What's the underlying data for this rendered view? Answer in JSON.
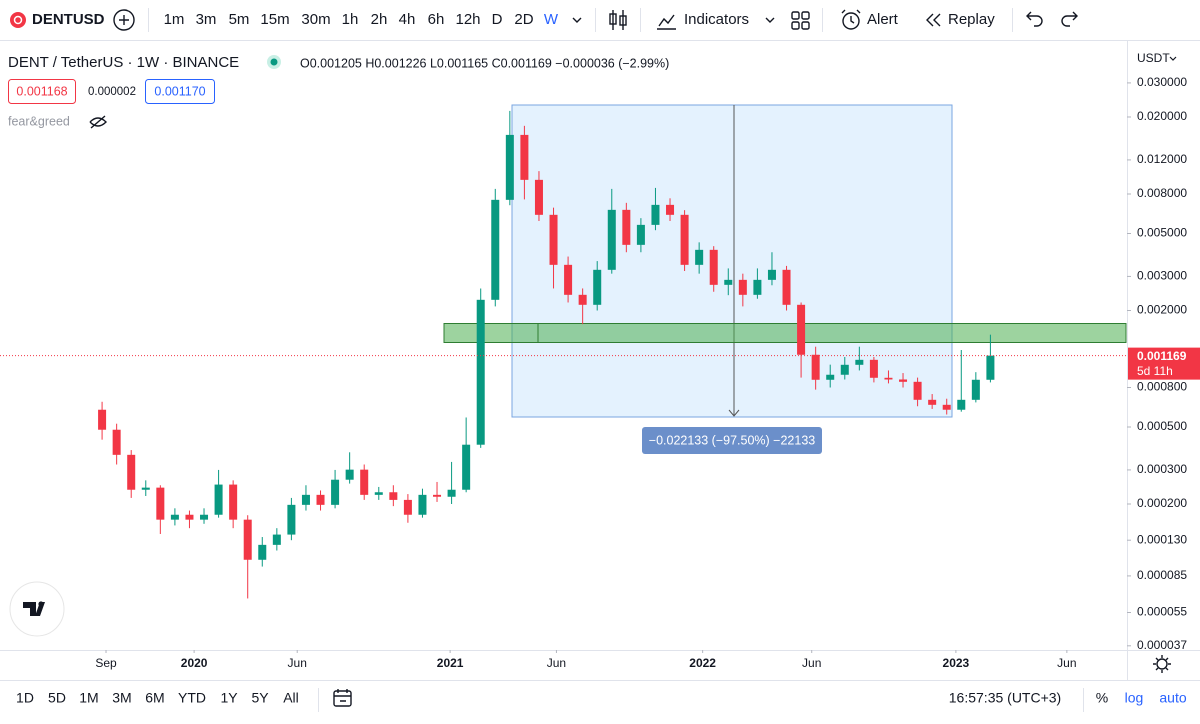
{
  "ui": {
    "symbol": "DENTUSD",
    "intervals": [
      "1m",
      "3m",
      "5m",
      "15m",
      "30m",
      "1h",
      "2h",
      "4h",
      "6h",
      "12h",
      "D",
      "2D",
      "W"
    ],
    "indicators": "Indicators",
    "alert": "Alert",
    "replay": "Replay",
    "legend_title": "DENT / TetherUS · 1W · BINANCE",
    "ohlc_line": "O0.001205 H0.001226 L0.001165 C0.001169 −0.000036 (−2.99%)",
    "bid": "0.001168",
    "spread": "0.000002",
    "ask": "0.001170",
    "indicator_name": "fear&greed",
    "currency": "USDT",
    "price_tag": "0.001169",
    "countdown": "5d 11h",
    "measure_label": "−0.022133 (−97.50%) −22133",
    "ranges": [
      "1D",
      "5D",
      "1M",
      "3M",
      "6M",
      "YTD",
      "1Y",
      "5Y",
      "All"
    ],
    "clock": "16:57:35 (UTC+3)",
    "percent": "%",
    "log": "log",
    "auto": "auto"
  },
  "chart_data": {
    "type": "candlestick",
    "log_scale": true,
    "grid": false,
    "up_color": "#089981",
    "down_color": "#f23645",
    "xlim": [
      -7.01,
      70.38
    ],
    "xticks": [
      {
        "value": 0.27,
        "label": "Sep"
      },
      {
        "value": 6.32,
        "label": "2020"
      },
      {
        "value": 13.4,
        "label": "Jun"
      },
      {
        "value": 23.9,
        "label": "2021"
      },
      {
        "value": 31.2,
        "label": "Jun"
      },
      {
        "value": 41.24,
        "label": "2022"
      },
      {
        "value": 48.73,
        "label": "Jun"
      },
      {
        "value": 58.63,
        "label": "2023"
      },
      {
        "value": 66.25,
        "label": "Jun"
      }
    ],
    "ylim": [
      3.52e-05,
      0.0471
    ],
    "yticks": [
      {
        "value": 0.03,
        "label": "0.030000"
      },
      {
        "value": 0.02,
        "label": "0.020000"
      },
      {
        "value": 0.012,
        "label": "0.012000"
      },
      {
        "value": 0.008,
        "label": "0.008000"
      },
      {
        "value": 0.005,
        "label": "0.005000"
      },
      {
        "value": 0.003,
        "label": "0.003000"
      },
      {
        "value": 0.002,
        "label": "0.002000"
      },
      {
        "value": 0.0008,
        "label": "0.000800"
      },
      {
        "value": 0.0005,
        "label": "0.000500"
      },
      {
        "value": 0.0003,
        "label": "0.000300"
      },
      {
        "value": 0.0002,
        "label": "0.000200"
      },
      {
        "value": 0.00013,
        "label": "0.000130"
      },
      {
        "value": 8.5e-05,
        "label": "0.000085"
      },
      {
        "value": 5.5e-05,
        "label": "0.000055"
      },
      {
        "value": 3.7e-05,
        "label": "0.000037"
      }
    ],
    "open": [
      0.000614,
      0.000484,
      0.000359,
      0.000237,
      0.000243,
      0.000166,
      0.000176,
      0.000166,
      0.000176,
      0.000252,
      0.000166,
      0.000103,
      0.000123,
      0.000139,
      0.000198,
      0.000223,
      0.000198,
      0.000267,
      0.000301,
      0.000223,
      0.00023,
      0.00021,
      0.000176,
      0.000223,
      0.000218,
      0.000237,
      0.000405,
      0.002271,
      0.007462,
      0.01616,
      0.009465,
      0.006243,
      0.003443,
      0.00241,
      0.00214,
      0.003245,
      0.006624,
      0.004368,
      0.00554,
      0.007029,
      0.006243,
      0.003443,
      0.004116,
      0.002714,
      0.00288,
      0.00241,
      0.00288,
      0.003245,
      0.00214,
      0.001181,
      0.000877,
      0.000931,
      0.001048,
      0.001112,
      0.000898,
      0.00088,
      0.000856,
      0.000691,
      0.000651,
      0.000614,
      0.000691,
      0.000877
    ],
    "high": [
      0.000675,
      0.00052,
      0.00038,
      0.000265,
      0.00025,
      0.00019,
      0.000185,
      0.00019,
      0.0003,
      0.000265,
      0.000175,
      0.000135,
      0.00015,
      0.000215,
      0.00025,
      0.000235,
      0.0003,
      0.00037,
      0.00032,
      0.000245,
      0.00025,
      0.000225,
      0.00024,
      0.00026,
      0.00033,
      0.00056,
      0.0026,
      0.0085,
      0.0215,
      0.018,
      0.0105,
      0.0068,
      0.0038,
      0.0026,
      0.0036,
      0.0085,
      0.0072,
      0.006,
      0.0086,
      0.0076,
      0.0066,
      0.0045,
      0.0043,
      0.0033,
      0.0031,
      0.0033,
      0.004,
      0.0034,
      0.0022,
      0.0013,
      0.00105,
      0.00115,
      0.0013,
      0.00115,
      0.00098,
      0.00095,
      0.0009,
      0.00074,
      0.0007,
      0.00125,
      0.00096,
      0.0015
    ],
    "low": [
      0.00043,
      0.00032,
      0.000215,
      0.00022,
      0.00014,
      0.000155,
      0.00015,
      0.000158,
      0.00017,
      0.00015,
      6.5e-05,
      9.5e-05,
      0.000115,
      0.00013,
      0.000185,
      0.000185,
      0.00019,
      0.000255,
      0.00021,
      0.00021,
      0.000195,
      0.00016,
      0.00017,
      0.000205,
      0.0002,
      0.00023,
      0.00039,
      0.0021,
      0.007,
      0.0075,
      0.0058,
      0.0026,
      0.0022,
      0.0017,
      0.002,
      0.0031,
      0.004,
      0.004,
      0.0052,
      0.0058,
      0.0032,
      0.0031,
      0.0025,
      0.0024,
      0.0021,
      0.0023,
      0.0027,
      0.002,
      0.0009,
      0.00078,
      0.0008,
      0.00088,
      0.00098,
      0.00085,
      0.00084,
      0.0008,
      0.00064,
      0.00062,
      0.00058,
      0.0006,
      0.00067,
      0.00085
    ],
    "close": [
      0.000484,
      0.000359,
      0.000237,
      0.000243,
      0.000166,
      0.000176,
      0.000166,
      0.000176,
      0.000252,
      0.000166,
      0.000103,
      0.000123,
      0.000139,
      0.000198,
      0.000223,
      0.000198,
      0.000267,
      0.000301,
      0.000223,
      0.00023,
      0.00021,
      0.000176,
      0.000223,
      0.000218,
      0.000237,
      0.000405,
      0.002271,
      0.007462,
      0.01616,
      0.009465,
      0.006243,
      0.003443,
      0.00241,
      0.00214,
      0.003245,
      0.006624,
      0.004368,
      0.00554,
      0.007029,
      0.006243,
      0.003443,
      0.004116,
      0.002714,
      0.00288,
      0.00241,
      0.00288,
      0.003245,
      0.00214,
      0.001181,
      0.000877,
      0.000931,
      0.001048,
      0.001112,
      0.000898,
      0.00088,
      0.000856,
      0.000691,
      0.000651,
      0.000614,
      0.000691,
      0.000877,
      0.001169
    ]
  }
}
